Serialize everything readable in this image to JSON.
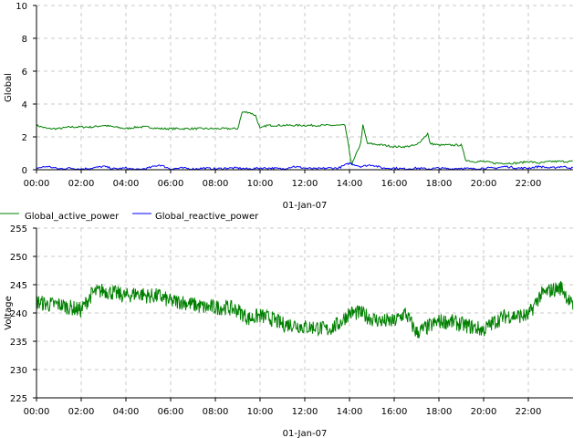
{
  "chart_data": [
    {
      "type": "line",
      "ylabel": "Global",
      "xlabel": "01-Jan-07",
      "ylim": [
        0,
        10
      ],
      "yticks": [
        "0",
        "2",
        "4",
        "6",
        "8",
        "10"
      ],
      "xticks": [
        "00:00",
        "02:00",
        "04:00",
        "06:00",
        "08:00",
        "10:00",
        "12:00",
        "14:00",
        "16:00",
        "18:00",
        "20:00",
        "22:00"
      ],
      "grid": true,
      "legend": "bottom-left",
      "series": [
        {
          "name": "Global_active_power",
          "color": "#008000",
          "x": [
            0,
            0.5,
            1,
            1.5,
            2,
            2.5,
            3,
            3.5,
            4,
            4.5,
            5,
            5.5,
            6,
            6.5,
            7,
            7.5,
            8,
            8.5,
            9,
            9.2,
            9.5,
            9.8,
            10,
            10.3,
            11,
            12,
            13,
            13.4,
            13.8,
            14.1,
            14.5,
            14.6,
            14.8,
            15.5,
            16,
            16.5,
            17,
            17.5,
            17.6,
            18,
            18.5,
            19,
            19.2,
            19.5,
            20,
            20.5,
            21,
            21.5,
            22,
            22.5,
            23,
            23.5,
            23.99
          ],
          "values": [
            2.7,
            2.5,
            2.5,
            2.6,
            2.6,
            2.6,
            2.7,
            2.6,
            2.5,
            2.6,
            2.6,
            2.5,
            2.5,
            2.5,
            2.5,
            2.5,
            2.5,
            2.5,
            2.5,
            3.5,
            3.5,
            3.3,
            2.5,
            2.7,
            2.7,
            2.7,
            2.7,
            2.7,
            2.7,
            0.3,
            1.6,
            2.7,
            1.6,
            1.5,
            1.4,
            1.4,
            1.5,
            2.2,
            1.6,
            1.5,
            1.5,
            1.5,
            0.6,
            0.5,
            0.5,
            0.4,
            0.4,
            0.4,
            0.5,
            0.4,
            0.5,
            0.5,
            0.5
          ]
        },
        {
          "name": "Global_reactive_power",
          "color": "#0000ff",
          "x": [
            0,
            0.5,
            1,
            1.5,
            2,
            2.5,
            3,
            3.5,
            4,
            4.5,
            5,
            5.5,
            6,
            6.5,
            7,
            7.5,
            8,
            8.5,
            9,
            9.5,
            10,
            10.5,
            11,
            11.5,
            12,
            12.5,
            13,
            13.5,
            14,
            14.5,
            15,
            15.5,
            16,
            16.5,
            17,
            17.5,
            18,
            18.5,
            19,
            19.5,
            20,
            20.5,
            21,
            21.5,
            22,
            22.5,
            23,
            23.5,
            23.99
          ],
          "values": [
            0.1,
            0.2,
            0.05,
            0.1,
            0.05,
            0.1,
            0.2,
            0.05,
            0.1,
            0.0,
            0.1,
            0.3,
            0.05,
            0.1,
            0.05,
            0.1,
            0.05,
            0.1,
            0.1,
            0.05,
            0.1,
            0.1,
            0.05,
            0.2,
            0.1,
            0.05,
            0.1,
            0.1,
            0.4,
            0.2,
            0.3,
            0.1,
            0.1,
            0.05,
            0.1,
            0.05,
            0.1,
            0.05,
            0.1,
            0.05,
            0.1,
            0.1,
            0.2,
            0.1,
            0.1,
            0.2,
            0.1,
            0.2,
            0.1
          ]
        }
      ]
    },
    {
      "type": "line",
      "ylabel": "Voltage",
      "xlabel": "01-Jan-07",
      "ylim": [
        225,
        255
      ],
      "yticks": [
        "225",
        "230",
        "235",
        "240",
        "245",
        "250",
        "255"
      ],
      "xticks": [
        "00:00",
        "02:00",
        "04:00",
        "06:00",
        "08:00",
        "10:00",
        "12:00",
        "14:00",
        "16:00",
        "18:00",
        "20:00",
        "22:00"
      ],
      "grid": true,
      "series": [
        {
          "name": "",
          "color": "#008000",
          "x": [
            0,
            0.5,
            1,
            1.5,
            2,
            2.5,
            3,
            3.5,
            4,
            4.5,
            5,
            5.5,
            6,
            6.5,
            7,
            7.5,
            8,
            8.5,
            9,
            9.5,
            10,
            10.5,
            11,
            11.5,
            12,
            12.5,
            13,
            13.5,
            14,
            14.5,
            15,
            15.5,
            16,
            16.5,
            17,
            17.5,
            18,
            18.5,
            19,
            19.5,
            20,
            20.5,
            21,
            21.5,
            22,
            22.5,
            23,
            23.5,
            23.99
          ],
          "values": [
            242,
            241.5,
            241.5,
            241,
            240.5,
            243.5,
            244,
            243.5,
            243,
            243.5,
            243,
            243,
            242,
            242,
            241.5,
            241,
            241,
            241,
            240.5,
            239,
            239.5,
            239,
            238,
            238,
            237.5,
            237.5,
            237,
            238,
            240,
            240,
            239,
            238.5,
            238.5,
            240,
            236.5,
            237.5,
            238.5,
            238.5,
            238,
            237.5,
            237,
            238.5,
            239.5,
            239.5,
            239.5,
            243,
            244,
            244.5,
            241
          ]
        }
      ]
    }
  ]
}
